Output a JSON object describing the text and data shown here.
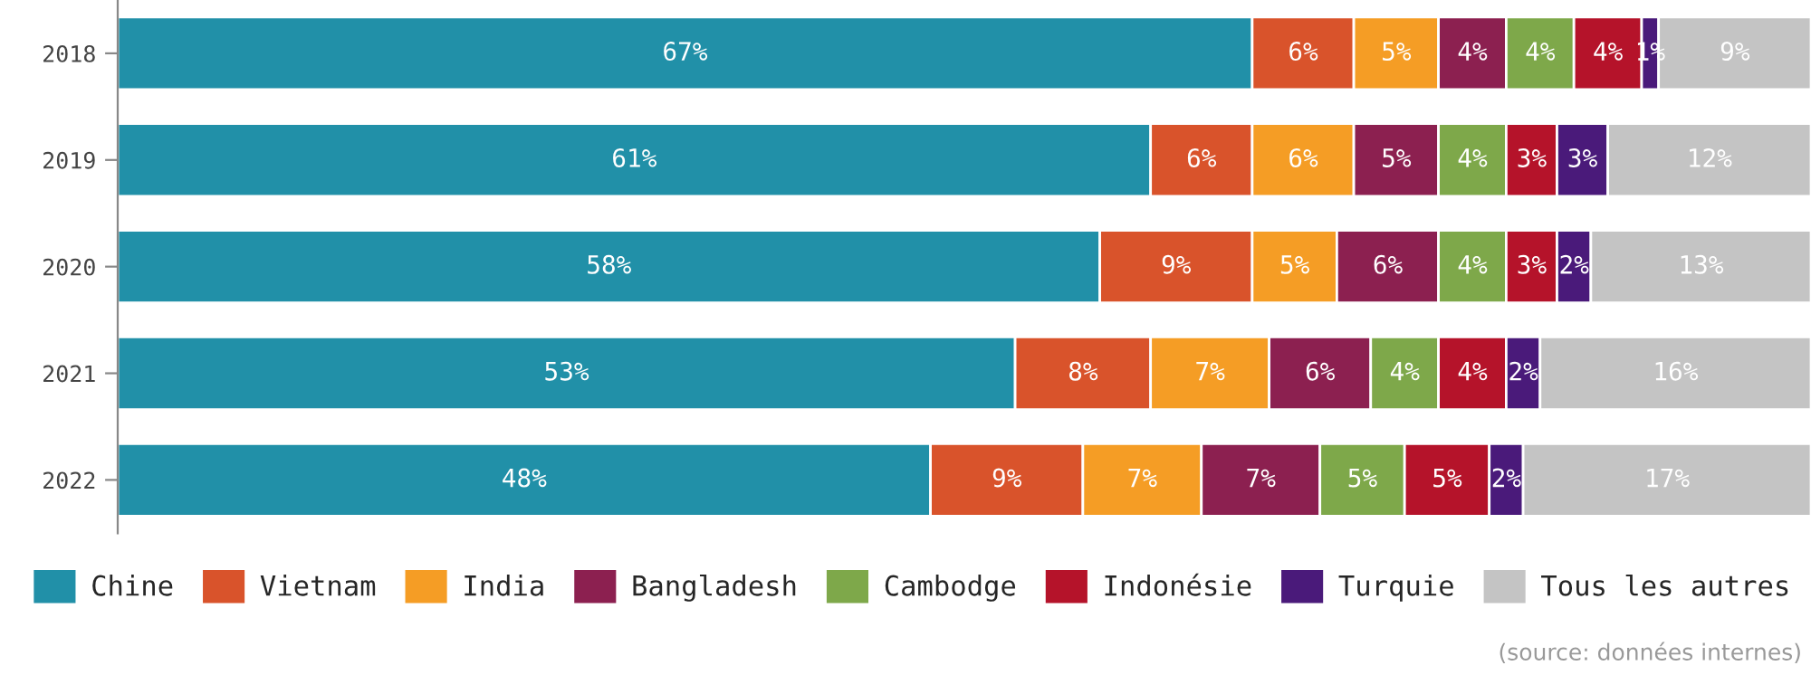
{
  "chart_data": {
    "type": "bar",
    "orientation": "horizontal",
    "stacked": true,
    "categories": [
      "2018",
      "2019",
      "2020",
      "2021",
      "2022"
    ],
    "xlim": [
      0,
      100
    ],
    "tick_labels": "y",
    "legend": "bottom",
    "series": [
      {
        "name": "Chine",
        "color": "#2190a8",
        "values": [
          67,
          61,
          58,
          53,
          48
        ],
        "value_labels": [
          "67%",
          "61%",
          "58%",
          "53%",
          "48%"
        ]
      },
      {
        "name": "Vietnam",
        "color": "#d9532b",
        "values": [
          6,
          6,
          9,
          8,
          9
        ],
        "value_labels": [
          "6%",
          "6%",
          "9%",
          "8%",
          "9%"
        ]
      },
      {
        "name": "India",
        "color": "#f59d25",
        "values": [
          5,
          6,
          5,
          7,
          7
        ],
        "value_labels": [
          "5%",
          "6%",
          "5%",
          "7%",
          "7%"
        ]
      },
      {
        "name": "Bangladesh",
        "color": "#8c2050",
        "values": [
          4,
          5,
          6,
          6,
          7
        ],
        "value_labels": [
          "4%",
          "5%",
          "6%",
          "6%",
          "7%"
        ]
      },
      {
        "name": "Cambodge",
        "color": "#7ea84a",
        "values": [
          4,
          4,
          4,
          4,
          5
        ],
        "value_labels": [
          "4%",
          "4%",
          "4%",
          "4%",
          "5%"
        ]
      },
      {
        "name": "Indonésie",
        "color": "#b5132a",
        "values": [
          4,
          3,
          3,
          4,
          5
        ],
        "value_labels": [
          "4%",
          "3%",
          "3%",
          "4%",
          "5%"
        ]
      },
      {
        "name": "Turquie",
        "color": "#4a1a7a",
        "values": [
          1,
          3,
          2,
          2,
          2
        ],
        "value_labels": [
          "1%",
          "3%",
          "2%",
          "2%",
          "2%"
        ]
      },
      {
        "name": "Tous les autres",
        "color": "#c4c4c4",
        "values": [
          9,
          12,
          13,
          16,
          17
        ],
        "value_labels": [
          "9%",
          "12%",
          "13%",
          "16%",
          "17%"
        ]
      }
    ],
    "annotations": [
      "(source: données internes)"
    ]
  }
}
